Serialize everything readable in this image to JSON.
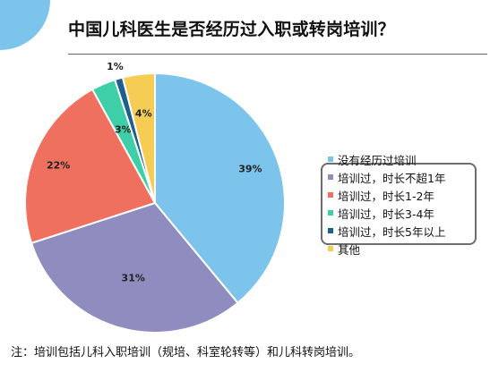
{
  "title": "中国儿科医生是否经历过入职或转岗培训？",
  "footnote": "注：培训包括儿科入职培训（规培、科室轮转等）和儿科转岗培训。",
  "chart_data": {
    "type": "pie",
    "title": "中国儿科医生是否经历过入职或转岗培训？",
    "start_angle_deg": 90,
    "direction": "clockwise",
    "slices": [
      {
        "label": "没有经历过培训",
        "value": 39,
        "value_label": "39%",
        "color": "#7cc4eb"
      },
      {
        "label": "培训过，时长不超1年",
        "value": 31,
        "value_label": "31%",
        "color": "#8f8cbf"
      },
      {
        "label": "培训过，时长1-2年",
        "value": 22,
        "value_label": "22%",
        "color": "#f0705f"
      },
      {
        "label": "培训过，时长3-4年",
        "value": 3,
        "value_label": "3%",
        "color": "#3fcfa8"
      },
      {
        "label": "培训过，时长5年以上",
        "value": 1,
        "value_label": "1%",
        "color": "#1f5f8f"
      },
      {
        "label": "其他",
        "value": 4,
        "value_label": "4%",
        "color": "#f5cd55"
      }
    ],
    "legend_position": "right",
    "legend_highlight_box": "培训过 entries"
  }
}
